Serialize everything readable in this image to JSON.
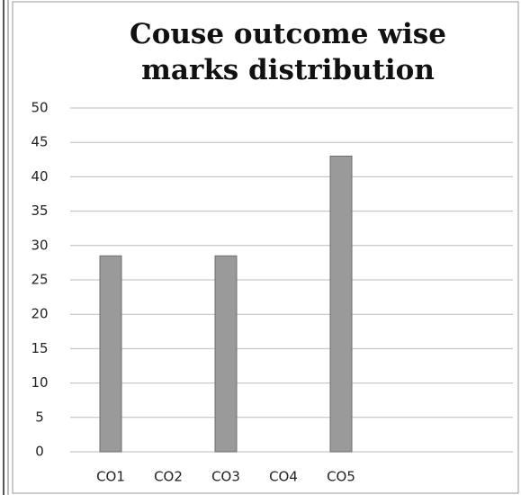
{
  "chart_data": {
    "type": "bar",
    "title": "Couse outcome wise marks distribution",
    "categories": [
      "CO1",
      "CO2",
      "CO3",
      "CO4",
      "CO5"
    ],
    "values": [
      28.5,
      0,
      28.5,
      0,
      43
    ],
    "color": "#9a9a9a",
    "ylim": [
      0,
      50
    ],
    "yticks": [
      0,
      5,
      10,
      15,
      20,
      25,
      30,
      35,
      40,
      45,
      50
    ],
    "grid": true
  }
}
